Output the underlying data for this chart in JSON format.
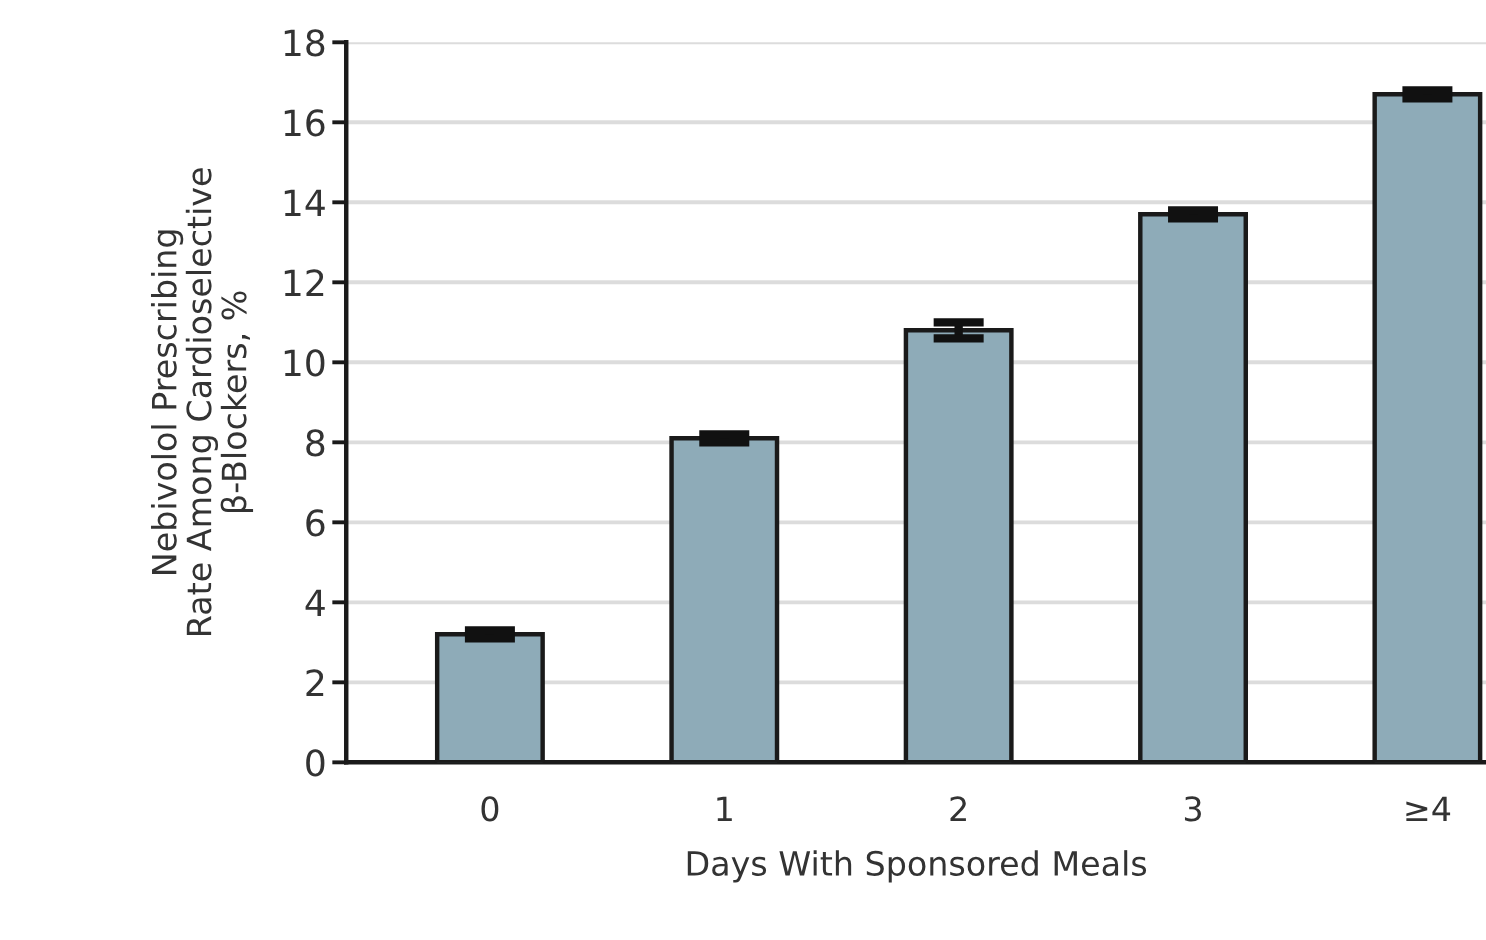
{
  "chart_data": {
    "type": "bar",
    "xlabel": "Days With Sponsored Meals",
    "ylabel": "Nebivolol Prescribing\nRate Among Cardioselective\nβ-Blockers, %",
    "categories": [
      "0",
      "1",
      "2",
      "3",
      "≥4"
    ],
    "values": [
      3.2,
      8.1,
      10.8,
      13.7,
      16.7
    ],
    "errors": [
      0.1,
      0.1,
      0.2,
      0.1,
      0.1
    ],
    "color": "#8eabb8",
    "ylim": [
      0,
      18
    ],
    "yticks": [
      0,
      2,
      4,
      6,
      8,
      10,
      12,
      14,
      16,
      18
    ],
    "grid": "y"
  }
}
